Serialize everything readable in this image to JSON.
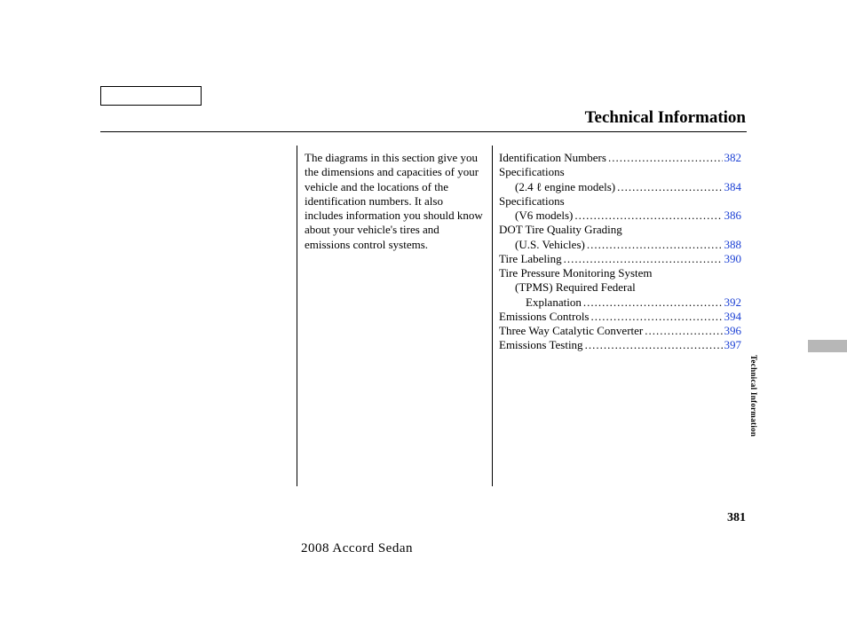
{
  "header": {
    "title": "Technical Information"
  },
  "intro": "The diagrams in this section give you the dimensions and capacities of your vehicle and the locations of the identification numbers. It also includes information you should know about your vehicle's tires and emissions control systems.",
  "toc": [
    {
      "label": "Identification Numbers",
      "page": "382",
      "indent": 0,
      "dots": true
    },
    {
      "label": "Specifications",
      "page": "",
      "indent": 0,
      "dots": false
    },
    {
      "label": "(2.4 ℓ engine models)",
      "page": "384",
      "indent": 1,
      "dots": true
    },
    {
      "label": "Specifications",
      "page": "",
      "indent": 0,
      "dots": false
    },
    {
      "label": "(V6 models)",
      "page": "386",
      "indent": 1,
      "dots": true
    },
    {
      "label": "DOT Tire Quality Grading",
      "page": "",
      "indent": 0,
      "dots": false
    },
    {
      "label": "(U.S. Vehicles)",
      "page": "388",
      "indent": 1,
      "dots": true
    },
    {
      "label": "Tire Labeling",
      "page": "390",
      "indent": 0,
      "dots": true
    },
    {
      "label": "Tire Pressure Monitoring System",
      "page": "",
      "indent": 0,
      "dots": false
    },
    {
      "label": "(TPMS)    Required Federal",
      "page": "",
      "indent": 1,
      "dots": false
    },
    {
      "label": "Explanation",
      "page": "392",
      "indent": 2,
      "dots": true
    },
    {
      "label": "Emissions Controls",
      "page": "394",
      "indent": 0,
      "dots": true
    },
    {
      "label": "Three Way Catalytic Converter",
      "page": "396",
      "indent": 0,
      "dots": true
    },
    {
      "label": "Emissions Testing",
      "page": "397",
      "indent": 0,
      "dots": true
    }
  ],
  "side_label": "Technical Information",
  "page_number": "381",
  "footer": "2008  Accord  Sedan",
  "colors": {
    "link": "#1a3fd4",
    "tab": "#b7b7b7",
    "text": "#000000",
    "bg": "#ffffff"
  }
}
